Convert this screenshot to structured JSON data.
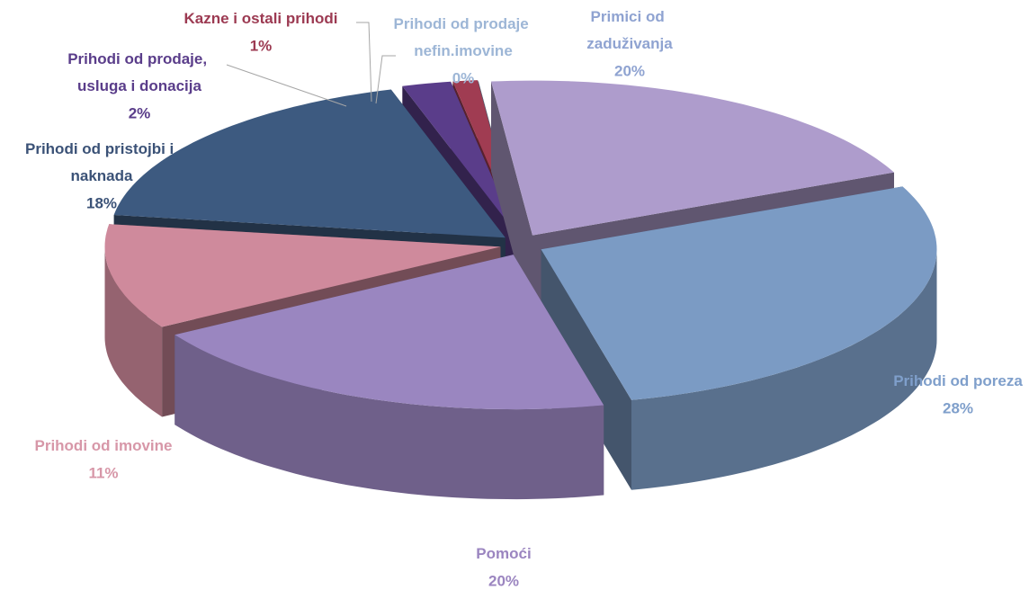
{
  "chart_data": {
    "type": "pie",
    "categories": [
      "Prihodi od poreza",
      "Pomoći",
      "Prihodi od imovine",
      "Prihodi od pristojbi i naknada",
      "Prihodi od prodaje, usluga i donacija",
      "Kazne i ostali prihodi",
      "Prihodi od prodaje nefin.imovine",
      "Primici od zaduživanja"
    ],
    "values": [
      28,
      20,
      11,
      18,
      2,
      1,
      0,
      20
    ],
    "value_labels": [
      "28%",
      "20%",
      "11%",
      "18%",
      "2%",
      "1%",
      "0%",
      "20%"
    ],
    "colors": [
      "#7b9bc4",
      "#9a86c0",
      "#cf8a9c",
      "#3d5a80",
      "#5a3d8a",
      "#a03c52",
      "#a0b8d8",
      "#ae9ccc"
    ],
    "label_colors": [
      "#7f9fcb",
      "#9b85c0",
      "#d797a8",
      "#3b5277",
      "#5a3d8a",
      "#9c3a52",
      "#9db6d6",
      "#8fa3d1"
    ]
  }
}
